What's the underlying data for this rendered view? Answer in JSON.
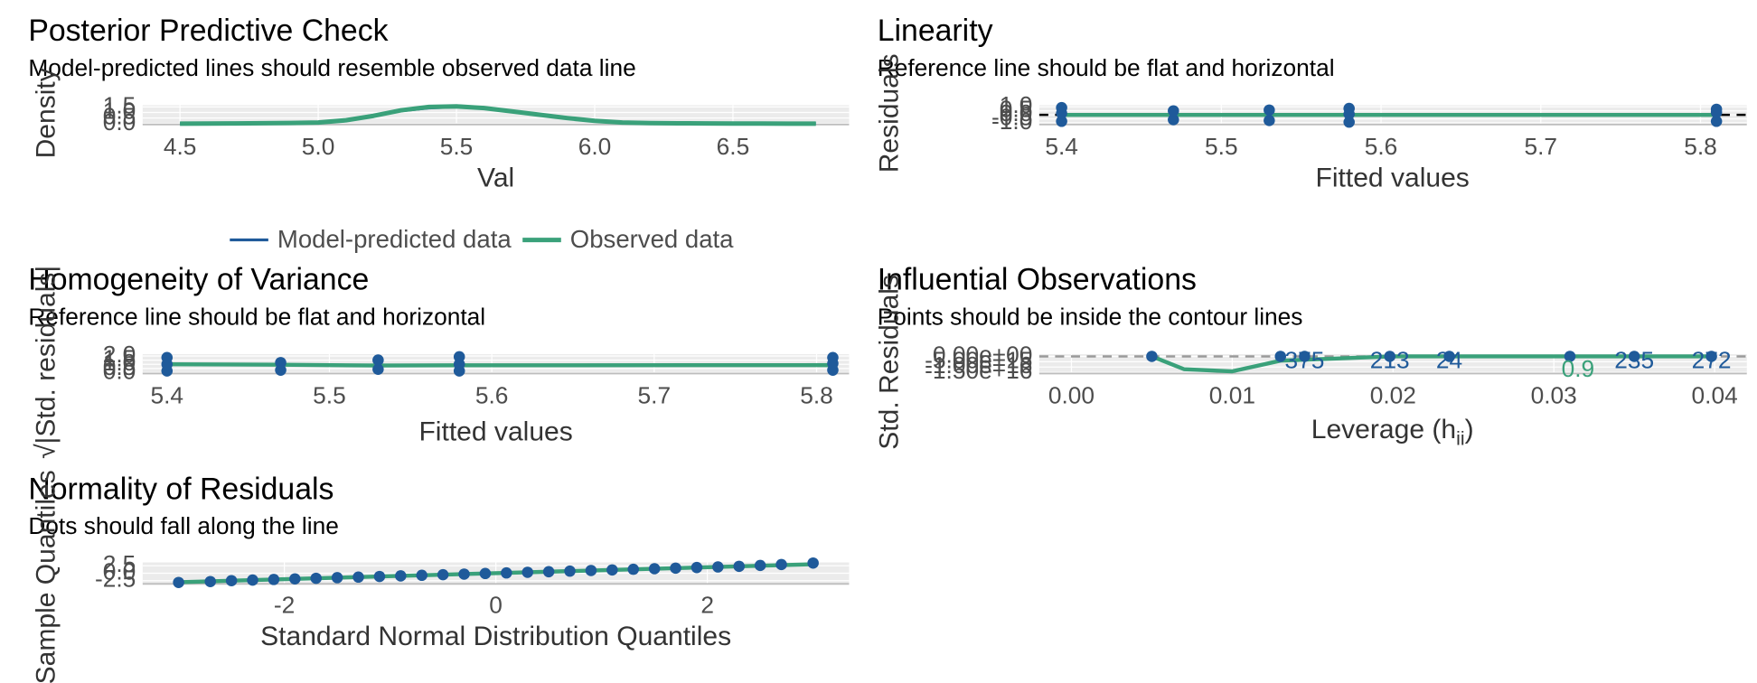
{
  "chart_data": [
    {
      "type": "line",
      "title": "Posterior Predictive Check",
      "subtitle": "Model-predicted lines should resemble observed data line",
      "x_label": "Val",
      "y_label": "Density",
      "x": [
        4.5,
        4.6,
        4.7,
        4.8,
        4.9,
        5.0,
        5.1,
        5.2,
        5.3,
        5.4,
        5.5,
        5.6,
        5.7,
        5.8,
        5.9,
        6.0,
        6.1,
        6.2,
        6.3,
        6.4,
        6.5,
        6.6,
        6.7,
        6.8
      ],
      "series": [
        {
          "name": "Model-predicted data",
          "color": "#1f5a9a",
          "values": [
            0.0,
            0.01,
            0.02,
            0.03,
            0.06,
            0.12,
            0.35,
            0.75,
            1.15,
            1.4,
            1.5,
            1.45,
            1.15,
            0.85,
            0.55,
            0.28,
            0.12,
            0.06,
            0.03,
            0.02,
            0.01,
            0.01,
            0.0,
            0.0
          ]
        },
        {
          "name": "Observed data",
          "color": "#3aa17a",
          "values": [
            0.0,
            0.01,
            0.02,
            0.04,
            0.06,
            0.1,
            0.3,
            0.7,
            1.2,
            1.5,
            1.55,
            1.4,
            1.1,
            0.8,
            0.5,
            0.25,
            0.1,
            0.05,
            0.03,
            0.02,
            0.01,
            0.01,
            0.0,
            0.0
          ]
        }
      ],
      "xlim": [
        4.365,
        6.92
      ],
      "ylim": [
        -0.08,
        1.65
      ],
      "xticks": [
        4.5,
        {
          "value": 5,
          "label": "5.0"
        },
        5.5,
        {
          "value": 6,
          "label": "6.0"
        },
        6.5
      ],
      "yticks": [
        {
          "value": 0,
          "label": "0.0"
        },
        0.5,
        {
          "value": 1,
          "label": "1.0"
        },
        1.5
      ],
      "grid": true,
      "legend": "bottom"
    },
    {
      "type": "scatter",
      "title": "Linearity",
      "subtitle": "Reference line should be flat and horizontal",
      "x_label": "Fitted values",
      "y_label": "Residuals",
      "color": "#1f5a9a",
      "fit_color": "#3aa17a",
      "x": [
        5.4,
        5.4,
        5.4,
        5.47,
        5.47,
        5.53,
        5.53,
        5.58,
        5.58,
        5.58,
        5.81,
        5.81,
        5.81
      ],
      "y": [
        -0.8,
        0.2,
        0.9,
        -0.6,
        0.5,
        -0.7,
        0.6,
        -0.9,
        0.1,
        0.8,
        -0.8,
        0.3,
        0.7
      ],
      "fit": {
        "x": [
          5.4,
          5.81
        ],
        "y": [
          0,
          0
        ]
      },
      "reference": 0,
      "xlim": [
        5.386,
        5.829
      ],
      "ylim": [
        -1.2,
        1.2
      ],
      "xticks": [
        5.4,
        5.5,
        5.6,
        5.7,
        5.8
      ],
      "yticks": [
        {
          "value": -1,
          "label": "-1.0"
        },
        -0.5,
        {
          "value": 0,
          "label": "0.0"
        },
        0.5,
        {
          "value": 1,
          "label": "1.0"
        }
      ],
      "grid": true
    },
    {
      "type": "scatter",
      "title": "Homogeneity of Variance",
      "subtitle": "Reference line should be flat and horizontal",
      "x_label": "Fitted values",
      "y_label": "√|Std. residuals|",
      "color": "#1f5a9a",
      "fit_color": "#3aa17a",
      "x": [
        5.4,
        5.4,
        5.4,
        5.47,
        5.47,
        5.53,
        5.53,
        5.58,
        5.58,
        5.58,
        5.81,
        5.81,
        5.81
      ],
      "y": [
        0.2,
        1.0,
        1.8,
        0.3,
        1.2,
        0.4,
        1.5,
        0.2,
        1.0,
        1.9,
        0.3,
        1.1,
        1.8
      ],
      "fit": {
        "x": [
          5.4,
          5.47,
          5.53,
          5.58,
          5.81
        ],
        "y": [
          1.0,
          0.95,
          0.85,
          0.88,
          0.9
        ]
      },
      "xlim": [
        5.385,
        5.82
      ],
      "ylim": [
        -0.1,
        2.2
      ],
      "xticks": [
        5.4,
        5.5,
        5.6,
        5.7,
        5.8
      ],
      "yticks": [
        {
          "value": 0,
          "label": "0.0"
        },
        0.5,
        {
          "value": 1,
          "label": "1.0"
        },
        1.5,
        {
          "value": 2,
          "label": "2.0"
        }
      ],
      "grid": true
    },
    {
      "type": "scatter",
      "title": "Influential Observations",
      "subtitle": "Points should be inside the contour lines",
      "x_label": "Leverage (h",
      "x_label_sub": "ii",
      "x_label_end": ")",
      "y_label": "Std. Residuals",
      "color": "#1f5a9a",
      "fit_color": "#3aa17a",
      "x": [
        0.005,
        0.013,
        0.0145,
        0.0198,
        0.0235,
        0.031,
        0.035,
        0.0398
      ],
      "y": [
        0,
        0,
        0,
        0,
        0,
        0,
        0,
        0
      ],
      "fit": {
        "x": [
          0.005,
          0.007,
          0.01,
          0.013,
          0.02,
          0.03,
          0.04
        ],
        "y": [
          0,
          -12,
          -14,
          -4,
          0,
          0,
          0
        ]
      },
      "reference": 0,
      "annotations": [
        {
          "text": "375",
          "x": 0.0145,
          "y": -5
        },
        {
          "text": "213",
          "x": 0.0198,
          "y": -5
        },
        {
          "text": "24",
          "x": 0.0235,
          "y": -5
        },
        {
          "text": "235",
          "x": 0.035,
          "y": -5
        },
        {
          "text": "272",
          "x": 0.0398,
          "y": -5
        }
      ],
      "contour_label": {
        "text": "0.9",
        "x": 0.0315,
        "y": -13
      },
      "xlim": [
        -0.002,
        0.042
      ],
      "ylim": [
        -16,
        2
      ],
      "xticks": [
        {
          "value": 0,
          "label": "0.00"
        },
        0.01,
        0.02,
        0.03,
        0.04
      ],
      "yticks": [
        {
          "value": 0,
          "label": "0.00e+00"
        },
        {
          "value": -5,
          "label": "-5.00e+15"
        },
        {
          "value": -10,
          "label": "-1.00e+16"
        },
        {
          "value": -15,
          "label": "-1.50e+16"
        }
      ],
      "grid": true
    },
    {
      "type": "scatter",
      "title": "Normality of Residuals",
      "subtitle": "Dots should fall along the line",
      "x_label": "Standard Normal Distribution Quantiles",
      "y_label": "Sample Quantiles",
      "color": "#1f5a9a",
      "fit_color": "#3aa17a",
      "x": [
        -3,
        -2.7,
        -2.5,
        -2.3,
        -2.1,
        -1.9,
        -1.7,
        -1.5,
        -1.3,
        -1.1,
        -0.9,
        -0.7,
        -0.5,
        -0.3,
        -0.1,
        0.1,
        0.3,
        0.5,
        0.7,
        0.9,
        1.1,
        1.3,
        1.5,
        1.7,
        1.9,
        2.1,
        2.3,
        2.5,
        2.7,
        3
      ],
      "y": [
        -3.1,
        -2.8,
        -2.5,
        -2.3,
        -2.1,
        -1.9,
        -1.7,
        -1.5,
        -1.3,
        -1.1,
        -0.9,
        -0.7,
        -0.5,
        -0.3,
        -0.1,
        0.1,
        0.3,
        0.5,
        0.7,
        0.9,
        1.1,
        1.3,
        1.5,
        1.7,
        1.9,
        2.1,
        2.3,
        2.6,
        2.9,
        3.4
      ],
      "fit": {
        "x": [
          -3,
          3
        ],
        "y": [
          -3,
          3
        ]
      },
      "xlim": [
        -3.34,
        3.34
      ],
      "ylim": [
        -3.6,
        3.6
      ],
      "xticks": [
        -2,
        0,
        2
      ],
      "yticks": [
        -2.5,
        {
          "value": 0,
          "label": "0.0"
        },
        2.5
      ],
      "grid": true
    }
  ]
}
